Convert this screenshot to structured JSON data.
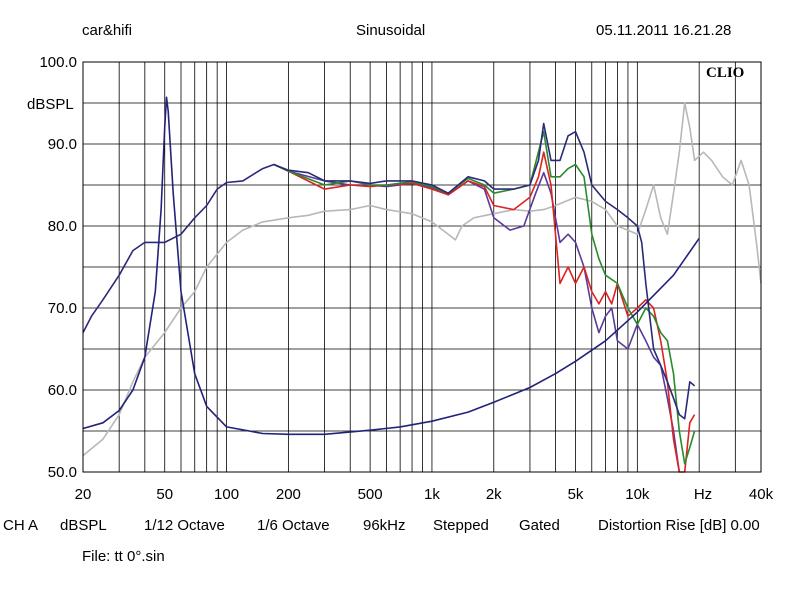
{
  "header": {
    "left": "car&hifi",
    "center": "Sinusoidal",
    "right": "05.11.2011 16.21.28"
  },
  "logo": "CLIO",
  "footer": {
    "items": [
      "CH A",
      "dBSPL",
      "1/12 Octave",
      "1/6 Octave",
      "96kHz",
      "Stepped",
      "Gated",
      "Distortion Rise [dB] 0.00"
    ],
    "file": "File: tt 0°.sin"
  },
  "chart_data": {
    "type": "line",
    "ylabel": "dBSPL",
    "xlabel": "Hz",
    "xscale": "log",
    "xlim": [
      20,
      40000
    ],
    "ylim": [
      50,
      100
    ],
    "yticks": [
      {
        "v": 100,
        "label": "100.0"
      },
      {
        "v": 90,
        "label": "90.0"
      },
      {
        "v": 80,
        "label": "80.0"
      },
      {
        "v": 70,
        "label": "70.0"
      },
      {
        "v": 60,
        "label": "60.0"
      },
      {
        "v": 50,
        "label": "50.0"
      }
    ],
    "xticks": [
      {
        "v": 20,
        "label": "20"
      },
      {
        "v": 50,
        "label": "50"
      },
      {
        "v": 100,
        "label": "100"
      },
      {
        "v": 200,
        "label": "200"
      },
      {
        "v": 500,
        "label": "500"
      },
      {
        "v": 1000,
        "label": "1k"
      },
      {
        "v": 2000,
        "label": "2k"
      },
      {
        "v": 5000,
        "label": "5k"
      },
      {
        "v": 10000,
        "label": "10k"
      },
      {
        "v": 40000,
        "label": "40k"
      }
    ],
    "grid": true,
    "series": [
      {
        "color": "#b8b8b8",
        "points": [
          [
            20,
            52
          ],
          [
            25,
            54
          ],
          [
            30,
            57
          ],
          [
            35,
            61
          ],
          [
            40,
            64
          ],
          [
            50,
            67
          ],
          [
            60,
            70
          ],
          [
            70,
            72
          ],
          [
            80,
            75
          ],
          [
            100,
            78
          ],
          [
            120,
            79.5
          ],
          [
            150,
            80.5
          ],
          [
            200,
            81
          ],
          [
            250,
            81.3
          ],
          [
            300,
            81.8
          ],
          [
            400,
            82
          ],
          [
            500,
            82.5
          ],
          [
            600,
            82
          ],
          [
            800,
            81.5
          ],
          [
            1000,
            80.5
          ],
          [
            1200,
            79
          ],
          [
            1300,
            78.3
          ],
          [
            1400,
            80
          ],
          [
            1600,
            81
          ],
          [
            2000,
            81.5
          ],
          [
            2500,
            82
          ],
          [
            3000,
            81.8
          ],
          [
            3500,
            82
          ],
          [
            4000,
            82.5
          ],
          [
            5000,
            83.5
          ],
          [
            6000,
            83
          ],
          [
            7000,
            82
          ],
          [
            8000,
            80
          ],
          [
            10000,
            79
          ],
          [
            11000,
            82
          ],
          [
            12000,
            85
          ],
          [
            13000,
            81
          ],
          [
            14000,
            79
          ],
          [
            15000,
            84
          ],
          [
            16000,
            89
          ],
          [
            17000,
            95
          ],
          [
            18000,
            92
          ],
          [
            19000,
            88
          ],
          [
            21000,
            89
          ],
          [
            23000,
            88
          ],
          [
            26000,
            86
          ],
          [
            29000,
            85
          ],
          [
            32000,
            88
          ],
          [
            35000,
            85
          ],
          [
            38000,
            78
          ],
          [
            40000,
            73
          ]
        ]
      },
      {
        "color": "#5a3a9a",
        "points": [
          [
            170,
            87.5
          ],
          [
            200,
            86.7
          ],
          [
            300,
            85.5
          ],
          [
            400,
            85
          ],
          [
            500,
            85
          ],
          [
            600,
            84.8
          ],
          [
            800,
            85.2
          ],
          [
            1000,
            84.7
          ],
          [
            1200,
            83.8
          ],
          [
            1500,
            85.5
          ],
          [
            1800,
            84.5
          ],
          [
            2000,
            81
          ],
          [
            2400,
            79.5
          ],
          [
            2800,
            80
          ],
          [
            3200,
            84
          ],
          [
            3500,
            86.5
          ],
          [
            3800,
            84
          ],
          [
            4200,
            78
          ],
          [
            4600,
            79
          ],
          [
            5000,
            78
          ],
          [
            5500,
            75
          ],
          [
            6000,
            70
          ],
          [
            6500,
            67
          ],
          [
            7000,
            69
          ],
          [
            7500,
            70
          ],
          [
            8000,
            66
          ],
          [
            9000,
            65
          ],
          [
            10000,
            68
          ],
          [
            11000,
            66
          ],
          [
            12000,
            64
          ],
          [
            13000,
            63
          ],
          [
            14000,
            59
          ],
          [
            15000,
            55
          ],
          [
            16000,
            50
          ]
        ]
      },
      {
        "color": "#dd2222",
        "points": [
          [
            170,
            87.5
          ],
          [
            200,
            86.7
          ],
          [
            300,
            84.5
          ],
          [
            400,
            85
          ],
          [
            500,
            84.8
          ],
          [
            600,
            85
          ],
          [
            800,
            85.2
          ],
          [
            1000,
            84.5
          ],
          [
            1200,
            83.8
          ],
          [
            1500,
            85.5
          ],
          [
            1800,
            84.8
          ],
          [
            2000,
            82.5
          ],
          [
            2500,
            82
          ],
          [
            3000,
            83.5
          ],
          [
            3300,
            86
          ],
          [
            3500,
            89
          ],
          [
            3800,
            85
          ],
          [
            4200,
            73
          ],
          [
            4600,
            75
          ],
          [
            5000,
            73
          ],
          [
            5500,
            75
          ],
          [
            6000,
            72
          ],
          [
            6500,
            70.5
          ],
          [
            7000,
            72
          ],
          [
            7500,
            70.5
          ],
          [
            8000,
            73
          ],
          [
            9000,
            69
          ],
          [
            10000,
            70
          ],
          [
            11000,
            71
          ],
          [
            12000,
            70
          ],
          [
            13000,
            66
          ],
          [
            14000,
            61
          ],
          [
            15000,
            54
          ],
          [
            16000,
            48
          ],
          [
            17000,
            50
          ],
          [
            18000,
            56
          ],
          [
            19000,
            57
          ]
        ]
      },
      {
        "color": "#2a8a2a",
        "points": [
          [
            170,
            87.5
          ],
          [
            200,
            86.7
          ],
          [
            300,
            85
          ],
          [
            400,
            85.5
          ],
          [
            500,
            85
          ],
          [
            600,
            85
          ],
          [
            800,
            85.4
          ],
          [
            1000,
            84.8
          ],
          [
            1200,
            84
          ],
          [
            1500,
            85.8
          ],
          [
            1800,
            85
          ],
          [
            2000,
            84
          ],
          [
            2500,
            84.5
          ],
          [
            3000,
            85
          ],
          [
            3500,
            91.5
          ],
          [
            3800,
            86
          ],
          [
            4200,
            86
          ],
          [
            4600,
            87
          ],
          [
            5000,
            87.5
          ],
          [
            5500,
            86
          ],
          [
            6000,
            79
          ],
          [
            6500,
            76
          ],
          [
            7000,
            74
          ],
          [
            8000,
            73
          ],
          [
            9000,
            70
          ],
          [
            10000,
            68
          ],
          [
            11000,
            70
          ],
          [
            12000,
            69
          ],
          [
            13000,
            67
          ],
          [
            14000,
            66
          ],
          [
            15000,
            62
          ],
          [
            16000,
            55
          ],
          [
            17000,
            51
          ],
          [
            18000,
            53
          ],
          [
            19000,
            55
          ]
        ]
      },
      {
        "color": "#2a2a7a",
        "points": [
          [
            20,
            67
          ],
          [
            22,
            69
          ],
          [
            25,
            71
          ],
          [
            30,
            74
          ],
          [
            35,
            77
          ],
          [
            40,
            78
          ],
          [
            50,
            78
          ],
          [
            60,
            79
          ],
          [
            70,
            81
          ],
          [
            80,
            82.5
          ],
          [
            90,
            84.5
          ],
          [
            100,
            85.3
          ],
          [
            120,
            85.5
          ],
          [
            150,
            87
          ],
          [
            170,
            87.5
          ],
          [
            200,
            86.8
          ],
          [
            250,
            86.5
          ],
          [
            300,
            85.5
          ],
          [
            400,
            85.5
          ],
          [
            500,
            85.2
          ],
          [
            600,
            85.5
          ],
          [
            800,
            85.5
          ],
          [
            1000,
            85
          ],
          [
            1200,
            84
          ],
          [
            1500,
            86
          ],
          [
            1800,
            85.5
          ],
          [
            2000,
            84.5
          ],
          [
            2500,
            84.5
          ],
          [
            3000,
            85
          ],
          [
            3300,
            88
          ],
          [
            3500,
            92.5
          ],
          [
            3800,
            88
          ],
          [
            4200,
            88
          ],
          [
            4600,
            91
          ],
          [
            5000,
            91.5
          ],
          [
            5500,
            89
          ],
          [
            6000,
            85
          ],
          [
            7000,
            83
          ],
          [
            8000,
            82
          ],
          [
            9000,
            81
          ],
          [
            10000,
            80
          ],
          [
            10500,
            78
          ],
          [
            11000,
            73
          ],
          [
            12000,
            65
          ],
          [
            13000,
            63
          ],
          [
            14000,
            61
          ],
          [
            15000,
            59
          ],
          [
            16000,
            57
          ],
          [
            17000,
            56.5
          ],
          [
            18000,
            61
          ],
          [
            19000,
            60.5
          ]
        ]
      },
      {
        "color": "#22227a",
        "points": [
          [
            20,
            55.3
          ],
          [
            25,
            56
          ],
          [
            30,
            57.5
          ],
          [
            35,
            60
          ],
          [
            40,
            64
          ],
          [
            45,
            72
          ],
          [
            48,
            82
          ],
          [
            50,
            92
          ],
          [
            51,
            95.7
          ],
          [
            52,
            94
          ],
          [
            55,
            84
          ],
          [
            60,
            72
          ],
          [
            70,
            62
          ],
          [
            80,
            58
          ],
          [
            100,
            55.5
          ],
          [
            150,
            54.7
          ],
          [
            200,
            54.6
          ],
          [
            300,
            54.6
          ],
          [
            500,
            55.1
          ],
          [
            700,
            55.5
          ],
          [
            1000,
            56.2
          ],
          [
            1500,
            57.3
          ],
          [
            2000,
            58.5
          ],
          [
            3000,
            60.3
          ],
          [
            4000,
            62
          ],
          [
            5000,
            63.5
          ],
          [
            7000,
            66
          ],
          [
            10000,
            69.5
          ],
          [
            15000,
            74
          ],
          [
            20000,
            78.5
          ]
        ]
      }
    ]
  }
}
